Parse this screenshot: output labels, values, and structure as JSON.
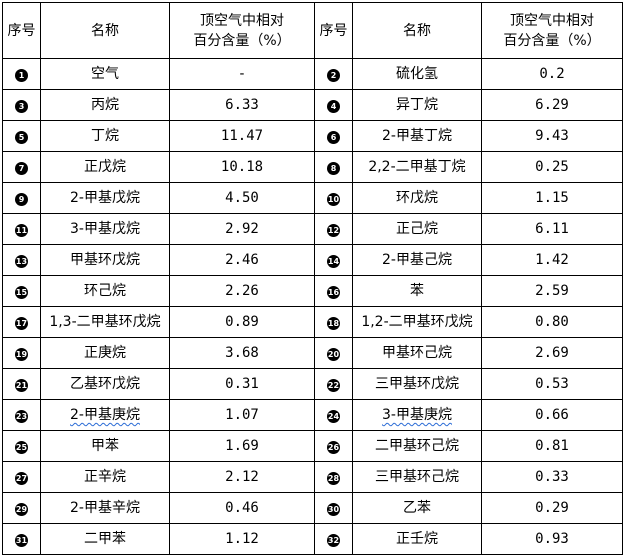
{
  "header": {
    "seq": "序号",
    "name": "名称",
    "content_line1": "顶空气中相对",
    "content_line2": "百分含量（%）"
  },
  "rows": [
    {
      "left": {
        "seq": "1",
        "name": "空气",
        "value": "-"
      },
      "right": {
        "seq": "2",
        "name": "硫化氢",
        "value": "0.2"
      }
    },
    {
      "left": {
        "seq": "3",
        "name": "丙烷",
        "value": "6.33"
      },
      "right": {
        "seq": "4",
        "name": "异丁烷",
        "value": "6.29"
      }
    },
    {
      "left": {
        "seq": "5",
        "name": "丁烷",
        "value": "11.47"
      },
      "right": {
        "seq": "6",
        "name": "2-甲基丁烷",
        "value": "9.43"
      }
    },
    {
      "left": {
        "seq": "7",
        "name": "正戊烷",
        "value": "10.18"
      },
      "right": {
        "seq": "8",
        "name": "2,2-二甲基丁烷",
        "value": "0.25"
      }
    },
    {
      "left": {
        "seq": "9",
        "name": "2-甲基戊烷",
        "value": "4.50"
      },
      "right": {
        "seq": "10",
        "name": "环戊烷",
        "value": "1.15"
      }
    },
    {
      "left": {
        "seq": "11",
        "name": "3-甲基戊烷",
        "value": "2.92"
      },
      "right": {
        "seq": "12",
        "name": "正己烷",
        "value": "6.11"
      }
    },
    {
      "left": {
        "seq": "13",
        "name": "甲基环戊烷",
        "value": "2.46"
      },
      "right": {
        "seq": "14",
        "name": "2-甲基己烷",
        "value": "1.42"
      }
    },
    {
      "left": {
        "seq": "15",
        "name": "环己烷",
        "value": "2.26"
      },
      "right": {
        "seq": "16",
        "name": "苯",
        "value": "2.59"
      }
    },
    {
      "left": {
        "seq": "17",
        "name": "1,3-二甲基环戊烷",
        "value": "0.89"
      },
      "right": {
        "seq": "18",
        "name": "1,2-二甲基环戊烷",
        "value": "0.80"
      }
    },
    {
      "left": {
        "seq": "19",
        "name": "正庚烷",
        "value": "3.68"
      },
      "right": {
        "seq": "20",
        "name": "甲基环己烷",
        "value": "2.69"
      }
    },
    {
      "left": {
        "seq": "21",
        "name": "乙基环戊烷",
        "value": "0.31"
      },
      "right": {
        "seq": "22",
        "name": "三甲基环戊烷",
        "value": "0.53"
      }
    },
    {
      "left": {
        "seq": "23",
        "name": "2-甲基庚烷",
        "value": "1.07"
      },
      "right": {
        "seq": "24",
        "name": "3-甲基庚烷",
        "value": "0.66"
      }
    },
    {
      "left": {
        "seq": "25",
        "name": "甲苯",
        "value": "1.69"
      },
      "right": {
        "seq": "26",
        "name": "二甲基环己烷",
        "value": "0.81"
      }
    },
    {
      "left": {
        "seq": "27",
        "name": "正辛烷",
        "value": "2.12"
      },
      "right": {
        "seq": "28",
        "name": "三甲基环己烷",
        "value": "0.33"
      }
    },
    {
      "left": {
        "seq": "29",
        "name": "2-甲基辛烷",
        "value": "0.46"
      },
      "right": {
        "seq": "30",
        "name": "乙苯",
        "value": "0.29"
      }
    },
    {
      "left": {
        "seq": "31",
        "name": "二甲苯",
        "value": "1.12"
      },
      "right": {
        "seq": "32",
        "name": "正壬烷",
        "value": "0.93"
      }
    }
  ]
}
